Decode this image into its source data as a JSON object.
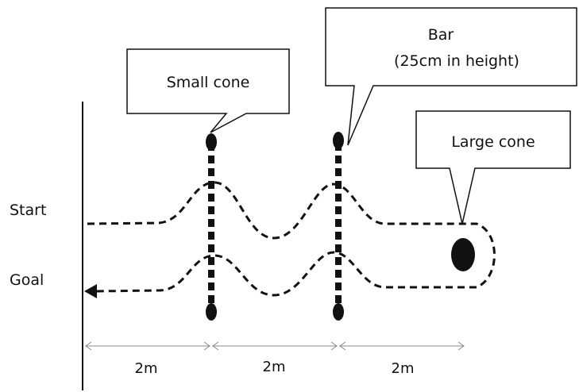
{
  "labels": {
    "start": "Start",
    "goal": "Goal"
  },
  "callouts": {
    "small_cone": "Small cone",
    "bar_line1": "Bar",
    "bar_line2": "(25cm in height)",
    "large_cone": "Large cone"
  },
  "distances": [
    "2m",
    "2m",
    "2m"
  ],
  "colors": {
    "ink": "#111111",
    "background": "#ffffff"
  }
}
